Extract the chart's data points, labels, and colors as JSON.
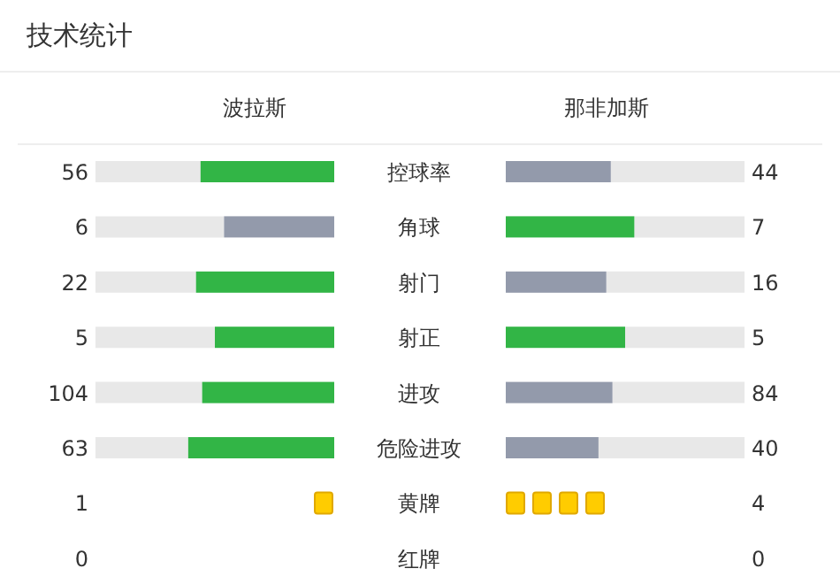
{
  "chart_data": [
    {
      "type": "other",
      "title": "技术统计",
      "categories": [
        "控球率",
        "角球",
        "射门",
        "射正",
        "进攻",
        "危险进攻"
      ],
      "data_labels": true,
      "series": [
        {
          "name": "波拉斯",
          "values": [
            56,
            6,
            22,
            5,
            104,
            63
          ],
          "colors": [
            "#32b546",
            "#939aab",
            "#32b546",
            "#32b546",
            "#32b546",
            "#32b546"
          ]
        },
        {
          "name": "那非加斯",
          "values": [
            44,
            7,
            16,
            5,
            84,
            40
          ],
          "colors": [
            "#939aab",
            "#32b546",
            "#939aab",
            "#32b546",
            "#939aab",
            "#939aab"
          ]
        }
      ]
    },
    {
      "type": "other",
      "categories": [
        "黄牌",
        "红牌"
      ],
      "data_labels": true,
      "series": [
        {
          "color": "#ffcc00",
          "values": [
            1,
            0
          ]
        },
        {
          "color": "#ffcc00",
          "values": [
            4,
            0
          ]
        }
      ]
    }
  ]
}
